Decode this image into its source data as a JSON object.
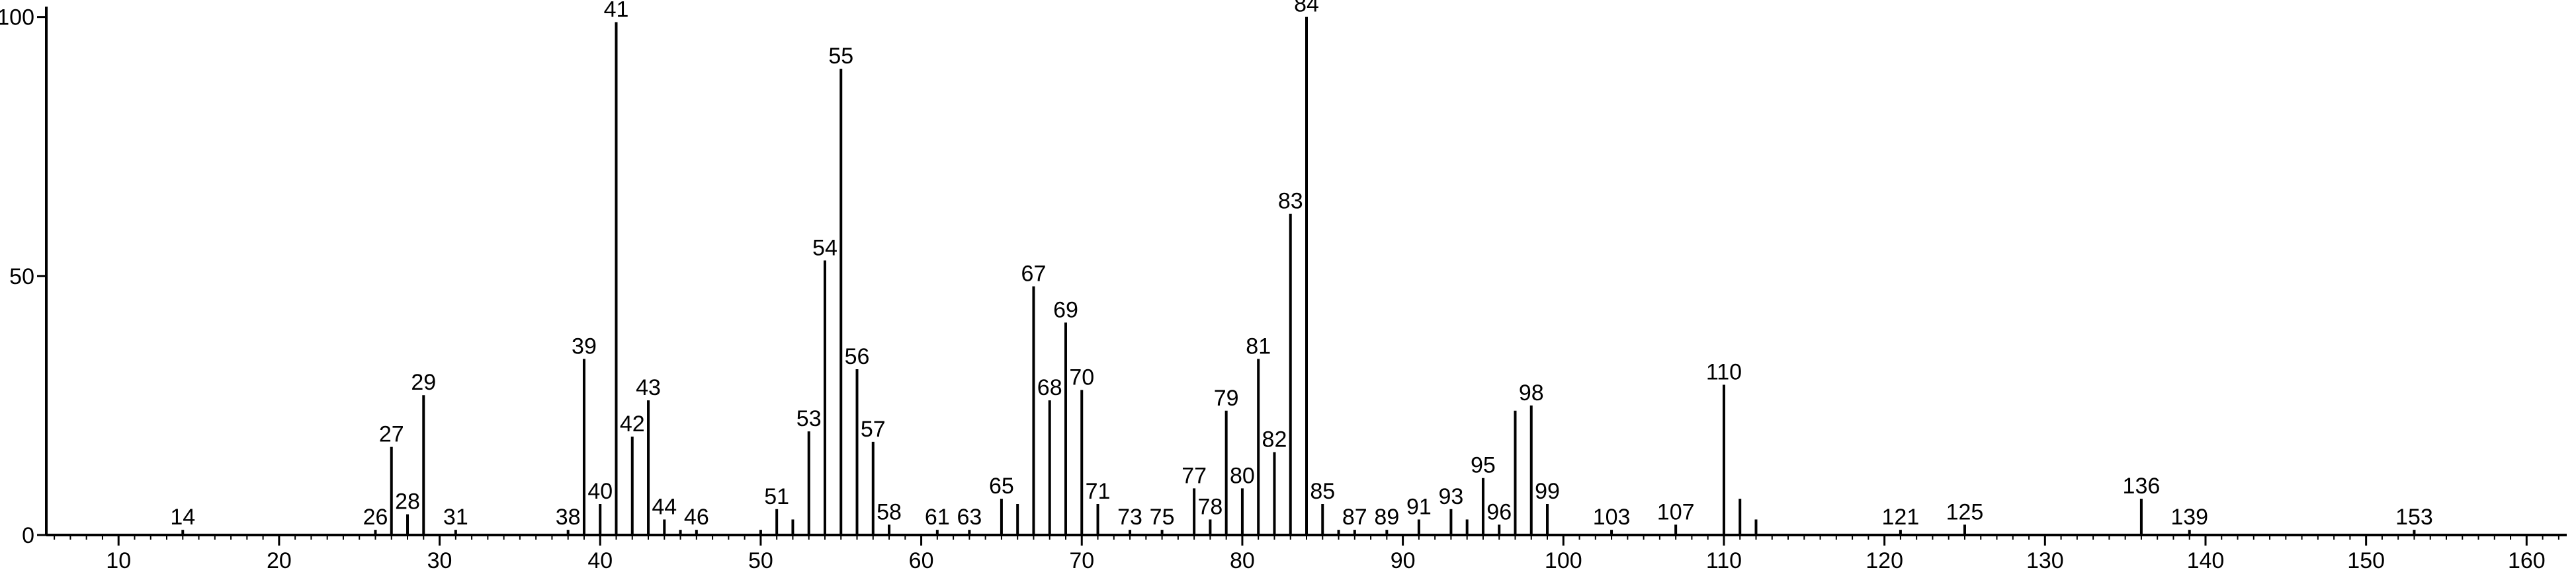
{
  "chart_data": {
    "type": "bar",
    "title": "",
    "xlabel": "",
    "ylabel": "",
    "xlim": [
      5.5,
      162.5
    ],
    "ylim": [
      0,
      102
    ],
    "x_ticks": [
      10,
      20,
      30,
      40,
      50,
      60,
      70,
      80,
      90,
      100,
      110,
      120,
      130,
      140,
      150,
      160
    ],
    "y_ticks": [
      0,
      50,
      100
    ],
    "grid": false,
    "legend": "none",
    "peaks": [
      {
        "x": 14,
        "y": 1,
        "label": "14"
      },
      {
        "x": 26,
        "y": 1,
        "label": "26"
      },
      {
        "x": 27,
        "y": 17,
        "label": "27"
      },
      {
        "x": 28,
        "y": 4,
        "label": "28"
      },
      {
        "x": 29,
        "y": 27,
        "label": "29"
      },
      {
        "x": 31,
        "y": 1,
        "label": "31"
      },
      {
        "x": 38,
        "y": 1,
        "label": "38"
      },
      {
        "x": 39,
        "y": 34,
        "label": "39"
      },
      {
        "x": 40,
        "y": 6,
        "label": "40"
      },
      {
        "x": 41,
        "y": 99,
        "label": "41"
      },
      {
        "x": 42,
        "y": 19,
        "label": "42"
      },
      {
        "x": 43,
        "y": 26,
        "label": "43"
      },
      {
        "x": 44,
        "y": 3,
        "label": "44"
      },
      {
        "x": 45,
        "y": 1,
        "label": ""
      },
      {
        "x": 46,
        "y": 1,
        "label": "46"
      },
      {
        "x": 50,
        "y": 1,
        "label": ""
      },
      {
        "x": 51,
        "y": 5,
        "label": "51"
      },
      {
        "x": 52,
        "y": 3,
        "label": ""
      },
      {
        "x": 53,
        "y": 20,
        "label": "53"
      },
      {
        "x": 54,
        "y": 53,
        "label": "54"
      },
      {
        "x": 55,
        "y": 90,
        "label": "55"
      },
      {
        "x": 56,
        "y": 32,
        "label": "56"
      },
      {
        "x": 57,
        "y": 18,
        "label": "57"
      },
      {
        "x": 58,
        "y": 2,
        "label": "58"
      },
      {
        "x": 61,
        "y": 1,
        "label": "61"
      },
      {
        "x": 63,
        "y": 1,
        "label": "63"
      },
      {
        "x": 65,
        "y": 7,
        "label": "65"
      },
      {
        "x": 66,
        "y": 6,
        "label": ""
      },
      {
        "x": 67,
        "y": 48,
        "label": "67"
      },
      {
        "x": 68,
        "y": 26,
        "label": "68"
      },
      {
        "x": 69,
        "y": 41,
        "label": "69"
      },
      {
        "x": 70,
        "y": 28,
        "label": "70"
      },
      {
        "x": 71,
        "y": 6,
        "label": "71"
      },
      {
        "x": 73,
        "y": 1,
        "label": "73"
      },
      {
        "x": 75,
        "y": 1,
        "label": "75"
      },
      {
        "x": 77,
        "y": 9,
        "label": "77"
      },
      {
        "x": 78,
        "y": 3,
        "label": "78"
      },
      {
        "x": 79,
        "y": 24,
        "label": "79"
      },
      {
        "x": 80,
        "y": 9,
        "label": "80"
      },
      {
        "x": 81,
        "y": 34,
        "label": "81"
      },
      {
        "x": 82,
        "y": 16,
        "label": "82"
      },
      {
        "x": 83,
        "y": 62,
        "label": "83"
      },
      {
        "x": 84,
        "y": 100,
        "label": "84"
      },
      {
        "x": 85,
        "y": 6,
        "label": "85"
      },
      {
        "x": 86,
        "y": 1,
        "label": ""
      },
      {
        "x": 87,
        "y": 1,
        "label": "87"
      },
      {
        "x": 89,
        "y": 1,
        "label": "89"
      },
      {
        "x": 91,
        "y": 3,
        "label": "91"
      },
      {
        "x": 93,
        "y": 5,
        "label": "93"
      },
      {
        "x": 94,
        "y": 3,
        "label": ""
      },
      {
        "x": 95,
        "y": 11,
        "label": "95"
      },
      {
        "x": 96,
        "y": 2,
        "label": "96"
      },
      {
        "x": 97,
        "y": 24,
        "label": ""
      },
      {
        "x": 98,
        "y": 25,
        "label": "98"
      },
      {
        "x": 99,
        "y": 6,
        "label": "99"
      },
      {
        "x": 103,
        "y": 1,
        "label": "103"
      },
      {
        "x": 107,
        "y": 2,
        "label": "107"
      },
      {
        "x": 110,
        "y": 29,
        "label": "110"
      },
      {
        "x": 111,
        "y": 7,
        "label": ""
      },
      {
        "x": 112,
        "y": 3,
        "label": ""
      },
      {
        "x": 121,
        "y": 1,
        "label": "121"
      },
      {
        "x": 125,
        "y": 2,
        "label": "125"
      },
      {
        "x": 136,
        "y": 7,
        "label": "136"
      },
      {
        "x": 139,
        "y": 1,
        "label": "139"
      },
      {
        "x": 153,
        "y": 1,
        "label": "153"
      }
    ]
  }
}
